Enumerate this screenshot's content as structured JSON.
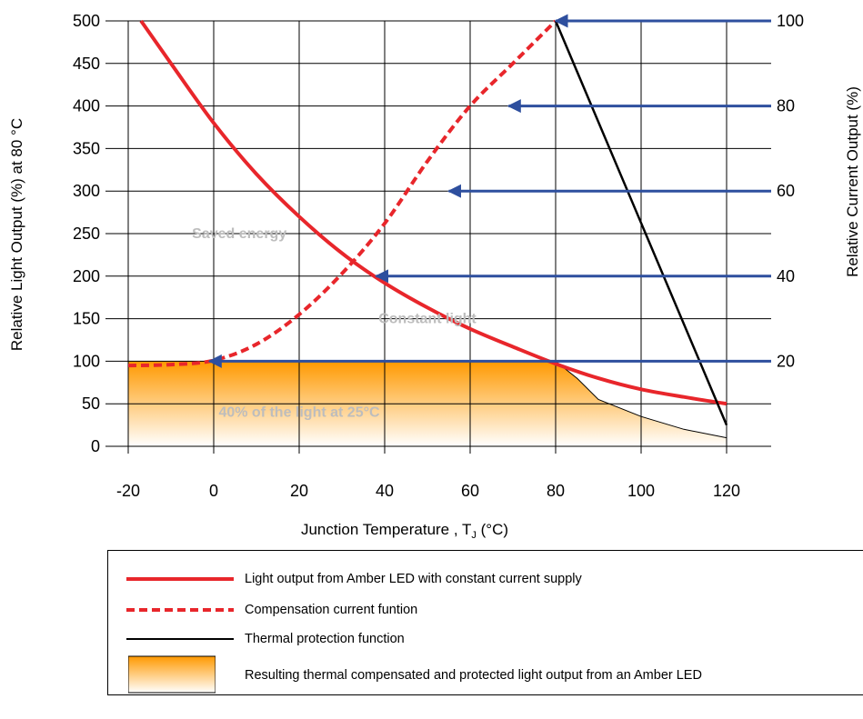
{
  "chart_data": {
    "type": "line",
    "xlabel": "Junction Temperature , T",
    "xlabel_sub": "J",
    "xlabel_unit": " (°C)",
    "ylabel": "Relative Light Output (%) at 80 °C",
    "ylabel_right": "Relative Current Output (%)",
    "x_ticks": [
      "-20",
      "0",
      "20",
      "40",
      "60",
      "80",
      "100",
      "120"
    ],
    "y_ticks": [
      "0",
      "50",
      "100",
      "150",
      "200",
      "250",
      "300",
      "350",
      "400",
      "450",
      "500"
    ],
    "y2_ticks": [
      "20",
      "40",
      "60",
      "80",
      "100"
    ],
    "xlim": [
      -25,
      130
    ],
    "ylim": [
      0,
      500
    ],
    "y2lim": [
      0,
      100
    ],
    "grid": true,
    "series": [
      {
        "name": "Light output from Amber LED with constant current supply",
        "style": "solid",
        "color": "#e8262b",
        "x": [
          -17,
          -10,
          0,
          10,
          20,
          30,
          40,
          50,
          60,
          70,
          80,
          90,
          100,
          110,
          120
        ],
        "y": [
          500,
          450,
          380,
          320,
          270,
          227,
          192,
          163,
          138,
          117,
          97,
          80,
          67,
          58,
          50
        ]
      },
      {
        "name": "Compensation current funtion",
        "style": "dashed",
        "color": "#e8262b",
        "x": [
          -20,
          -10,
          0,
          10,
          20,
          30,
          40,
          50,
          60,
          70,
          80
        ],
        "y": [
          95,
          96,
          101,
          120,
          155,
          203,
          262,
          335,
          400,
          450,
          500
        ]
      },
      {
        "name": "Thermal protection function",
        "style": "solid",
        "color": "#000000",
        "x": [
          80,
          120
        ],
        "y": [
          500,
          25
        ]
      }
    ],
    "area": {
      "name": "Resulting thermal compensated and protected light output from an Amber LED",
      "color_top": "#ff9900",
      "color_bottom": "#ffffff",
      "x": [
        -20,
        0,
        80,
        85,
        90,
        100,
        110,
        120
      ],
      "y": [
        100,
        100,
        100,
        80,
        55,
        35,
        20,
        10
      ]
    },
    "arrows": [
      {
        "from_x": 120,
        "to_x": 80,
        "y": 500,
        "y2_label": "100"
      },
      {
        "from_x": 120,
        "to_x": 69,
        "y": 400,
        "y2_label": "80"
      },
      {
        "from_x": 120,
        "to_x": 55,
        "y": 300,
        "y2_label": "60"
      },
      {
        "from_x": 120,
        "to_x": 38,
        "y": 200,
        "y2_label": "40"
      },
      {
        "from_x": 120,
        "to_x": -1,
        "y": 100,
        "y2_label": "20"
      }
    ],
    "annotations": [
      {
        "text": "Saved energy",
        "x": 6,
        "y": 250
      },
      {
        "text": "Constant light",
        "x": 50,
        "y": 150
      },
      {
        "text": "40% of the light at  25°C",
        "x": 20,
        "y": 40
      }
    ]
  },
  "legend": {
    "items": [
      {
        "label": "Light output from Amber LED with constant current supply",
        "symbol": "solid-red"
      },
      {
        "label": "Compensation current funtion",
        "symbol": "dashed-red"
      },
      {
        "label": "Thermal protection function",
        "symbol": "solid-black"
      },
      {
        "label": "Resulting thermal compensated and protected light output from an Amber LED",
        "symbol": "gradient-box"
      }
    ]
  }
}
